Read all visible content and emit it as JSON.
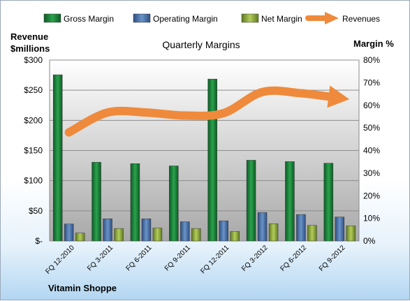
{
  "chart_data": {
    "type": "bar",
    "title": "Quarterly Margins",
    "categories": [
      "FQ 12-2010",
      "FQ 3-2011",
      "FQ 6-2011",
      "FQ 9-2011",
      "FQ 12-2011",
      "FQ 3-2012",
      "FQ 6-2012",
      "FQ 9-2012"
    ],
    "left_axis": {
      "label_line1": "Revenue",
      "label_line2": "$millions",
      "ylim": [
        0,
        300
      ],
      "ticks": [
        0,
        50,
        100,
        150,
        200,
        250,
        300
      ],
      "tick_labels": [
        "$-",
        "$50",
        "$100",
        "$150",
        "$200",
        "$250",
        "$300"
      ]
    },
    "right_axis": {
      "label": "Margin %",
      "ylim": [
        0,
        80
      ],
      "ticks": [
        0,
        10,
        20,
        30,
        40,
        50,
        60,
        70,
        80
      ],
      "tick_labels": [
        "0%",
        "10%",
        "20%",
        "30%",
        "40%",
        "50%",
        "60%",
        "70%",
        "80%"
      ]
    },
    "series": [
      {
        "name": "Gross Margin",
        "kind": "bar",
        "axis": "right",
        "color": "#1e7a3a",
        "values": [
          73.5,
          34.8,
          34.2,
          33.2,
          71.6,
          35.7,
          35.1,
          34.4
        ]
      },
      {
        "name": "Operating Margin",
        "kind": "bar",
        "axis": "right",
        "color": "#4670a8",
        "values": [
          7.5,
          9.8,
          9.8,
          8.5,
          8.9,
          12.6,
          11.7,
          10.6
        ]
      },
      {
        "name": "Net Margin",
        "kind": "bar",
        "axis": "right",
        "color": "#8faa3c",
        "values": [
          3.5,
          5.5,
          5.7,
          5.5,
          4.2,
          7.6,
          6.9,
          6.7
        ]
      },
      {
        "name": "Revenues",
        "kind": "line",
        "axis": "left",
        "color": "#ef8a3c",
        "values": [
          180,
          213,
          213,
          208,
          212,
          247,
          245,
          237
        ]
      }
    ],
    "grid": true,
    "legend": "top"
  },
  "footer_note": "Vitamin Shoppe"
}
